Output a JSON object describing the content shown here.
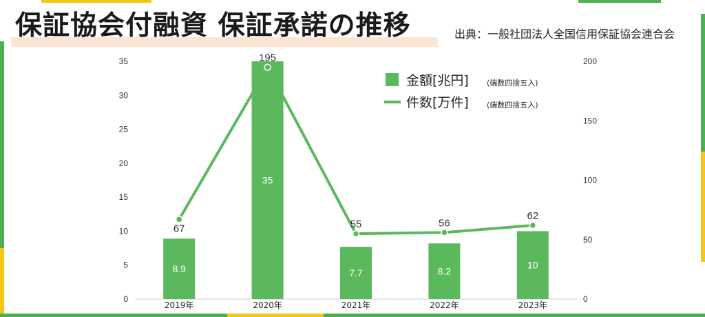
{
  "header": {
    "title": "保証協会付融資 保証承諾の推移",
    "source": "出典：一般社団法人全国信用保証協会連合会"
  },
  "colors": {
    "bar": "#5cb85c",
    "line": "#5cb85c",
    "frame_green": "#4caf50",
    "frame_yellow": "#f5c518",
    "title_band": "#fbe6d6"
  },
  "legend": {
    "bar_label": "金額[兆円]",
    "bar_note": "(端数四捨五入)",
    "line_label": "件数[万件]",
    "line_note": "(端数四捨五入)",
    "placement": "top-right"
  },
  "chart_data": {
    "type": "bar",
    "categories": [
      "2019年",
      "2020年",
      "2021年",
      "2022年",
      "2023年"
    ],
    "series": [
      {
        "name": "金額[兆円]",
        "type": "bar",
        "axis": "left",
        "values": [
          8.9,
          35,
          7.7,
          8.2,
          10
        ],
        "labels": [
          "8.9",
          "35",
          "7.7",
          "8.2",
          "10"
        ]
      },
      {
        "name": "件数[万件]",
        "type": "line",
        "axis": "right",
        "values": [
          67,
          195,
          55,
          56,
          62
        ],
        "labels": [
          "67",
          "195",
          "55",
          "56",
          "62"
        ]
      }
    ],
    "y_left": {
      "lim": [
        0,
        35
      ],
      "ticks": [
        "0",
        "5",
        "10",
        "15",
        "20",
        "25",
        "30",
        "35"
      ]
    },
    "y_right": {
      "lim": [
        0,
        200
      ],
      "ticks": [
        "0",
        "50",
        "100",
        "150",
        "200"
      ]
    },
    "grid": false
  }
}
